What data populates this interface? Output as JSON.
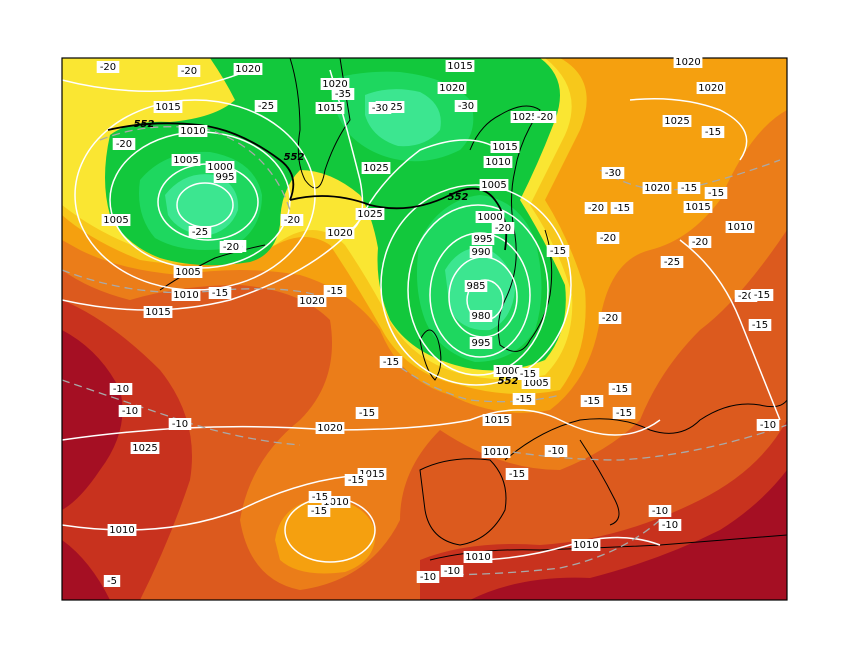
{
  "map": {
    "colors": {
      "background": "#ffffff",
      "frame": "#000000",
      "isobar": "#ffffff",
      "isotherm": "#a9a9a9",
      "coast": "#000000",
      "bands": [
        "#a50f23",
        "#c8321e",
        "#dc5a1e",
        "#eb7d19",
        "#f5a00f",
        "#f7c81b",
        "#fae632",
        "#12c83c",
        "#1ed75f",
        "#3ce690"
      ]
    },
    "isobar_labels": [
      "1020",
      "1015",
      "1020",
      "1015",
      "1010",
      "1005",
      "1000",
      "995",
      "1005",
      "1005",
      "1010",
      "1015",
      "1020",
      "1015",
      "1020",
      "1025",
      "1015",
      "1025",
      "1025",
      "1025",
      "1020",
      "1015",
      "1010",
      "1005",
      "1000",
      "995",
      "990",
      "985",
      "980",
      "995",
      "1000",
      "1005",
      "1015",
      "1020",
      "1025",
      "1020",
      "1015",
      "1020",
      "1010",
      "1010",
      "1015",
      "1010",
      "1020",
      "1025",
      "1010",
      "1010",
      "1010"
    ],
    "isotherm_labels": [
      "-20",
      "-20",
      "-20",
      "-25",
      "-30",
      "-35",
      "-30",
      "-25",
      "-20",
      "-20",
      "-20",
      "-25",
      "-20",
      "-15",
      "-15",
      "-20",
      "-25",
      "-30",
      "-20",
      "-15",
      "-15",
      "-20",
      "-15",
      "-15",
      "-15",
      "-15",
      "-15",
      "-15",
      "-15",
      "-15",
      "-15",
      "-15",
      "-15",
      "-15",
      "-20",
      "-20",
      "-15",
      "-15",
      "-15",
      "-10",
      "-10",
      "-10",
      "-15",
      "-10",
      "-10",
      "-10",
      "-10",
      "-10",
      "-10",
      "-5"
    ],
    "thickness_labels": [
      "552",
      "552",
      "552",
      "552"
    ]
  }
}
